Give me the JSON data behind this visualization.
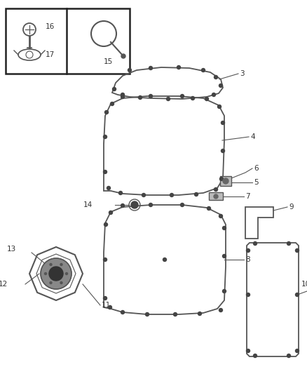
{
  "bg_color": "#ffffff",
  "line_color": "#555555",
  "label_color": "#333333",
  "fig_width": 4.38,
  "fig_height": 5.33,
  "dpi": 100
}
